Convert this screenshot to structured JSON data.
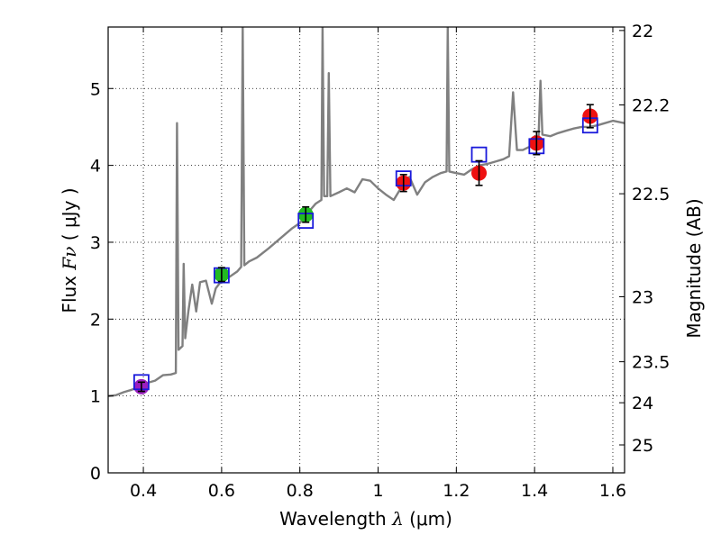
{
  "chart_data": {
    "type": "scatter",
    "xlabel_prefix": "Wavelength",
    "xlabel_symbol": "λ",
    "xlabel_unit": "(μm)",
    "ylabel_prefix": "Flux",
    "ylabel_symbol": "Fν",
    "ylabel_unit": "( μJy )",
    "y2label": "Magnitude (AB)",
    "xlim": [
      0.31,
      1.63
    ],
    "ylim": [
      0,
      5.8
    ],
    "grid": true,
    "x_ticks": [
      {
        "value": 0.4,
        "label": "0.4"
      },
      {
        "value": 0.6,
        "label": "0.6"
      },
      {
        "value": 0.8,
        "label": "0.8"
      },
      {
        "value": 1.0,
        "label": "1"
      },
      {
        "value": 1.2,
        "label": "1.2"
      },
      {
        "value": 1.4,
        "label": "1.4"
      },
      {
        "value": 1.6,
        "label": "1.6"
      }
    ],
    "y_ticks": [
      {
        "value": 0,
        "label": "0"
      },
      {
        "value": 1,
        "label": "1"
      },
      {
        "value": 2,
        "label": "2"
      },
      {
        "value": 3,
        "label": "3"
      },
      {
        "value": 4,
        "label": "4"
      },
      {
        "value": 5,
        "label": "5"
      }
    ],
    "y2_ticks": [
      {
        "value": 22,
        "label": "22"
      },
      {
        "value": 22.2,
        "label": "22.2"
      },
      {
        "value": 22.5,
        "label": "22.5"
      },
      {
        "value": 23,
        "label": "23"
      },
      {
        "value": 23.5,
        "label": "23.5"
      },
      {
        "value": 24,
        "label": "24"
      },
      {
        "value": 25,
        "label": "25"
      }
    ],
    "observed": [
      {
        "x": 0.395,
        "y": 1.12,
        "err": 0.06,
        "color": "#9b1fbf"
      },
      {
        "x": 0.6,
        "y": 2.58,
        "err": 0.09,
        "color": "#22bb22"
      },
      {
        "x": 0.815,
        "y": 3.36,
        "err": 0.1,
        "color": "#22bb22"
      },
      {
        "x": 1.065,
        "y": 3.77,
        "err": 0.11,
        "color": "#ee1111"
      },
      {
        "x": 1.258,
        "y": 3.9,
        "err": 0.16,
        "color": "#ee1111"
      },
      {
        "x": 1.405,
        "y": 4.29,
        "err": 0.15,
        "color": "#ee1111"
      },
      {
        "x": 1.542,
        "y": 4.64,
        "err": 0.15,
        "color": "#ee1111"
      }
    ],
    "model_points": [
      {
        "x": 0.395,
        "y": 1.18
      },
      {
        "x": 0.6,
        "y": 2.57
      },
      {
        "x": 0.815,
        "y": 3.28
      },
      {
        "x": 1.065,
        "y": 3.83
      },
      {
        "x": 1.258,
        "y": 4.14
      },
      {
        "x": 1.405,
        "y": 4.25
      },
      {
        "x": 1.542,
        "y": 4.52
      }
    ],
    "spectrum": [
      [
        0.31,
        1.0
      ],
      [
        0.33,
        1.01
      ],
      [
        0.35,
        1.05
      ],
      [
        0.37,
        1.08
      ],
      [
        0.39,
        1.12
      ],
      [
        0.41,
        1.17
      ],
      [
        0.43,
        1.2
      ],
      [
        0.45,
        1.27
      ],
      [
        0.47,
        1.28
      ],
      [
        0.483,
        1.3
      ],
      [
        0.486,
        4.55
      ],
      [
        0.49,
        1.6
      ],
      [
        0.5,
        1.65
      ],
      [
        0.503,
        2.72
      ],
      [
        0.507,
        1.75
      ],
      [
        0.515,
        2.1
      ],
      [
        0.525,
        2.45
      ],
      [
        0.535,
        2.1
      ],
      [
        0.545,
        2.48
      ],
      [
        0.56,
        2.5
      ],
      [
        0.575,
        2.2
      ],
      [
        0.585,
        2.4
      ],
      [
        0.6,
        2.5
      ],
      [
        0.62,
        2.55
      ],
      [
        0.64,
        2.62
      ],
      [
        0.65,
        2.68
      ],
      [
        0.654,
        5.8
      ],
      [
        0.658,
        2.7
      ],
      [
        0.67,
        2.75
      ],
      [
        0.69,
        2.8
      ],
      [
        0.72,
        2.92
      ],
      [
        0.75,
        3.05
      ],
      [
        0.78,
        3.18
      ],
      [
        0.8,
        3.25
      ],
      [
        0.82,
        3.38
      ],
      [
        0.84,
        3.5
      ],
      [
        0.855,
        3.55
      ],
      [
        0.858,
        5.8
      ],
      [
        0.862,
        3.6
      ],
      [
        0.87,
        3.6
      ],
      [
        0.874,
        5.2
      ],
      [
        0.878,
        3.6
      ],
      [
        0.9,
        3.65
      ],
      [
        0.92,
        3.7
      ],
      [
        0.94,
        3.65
      ],
      [
        0.96,
        3.82
      ],
      [
        0.98,
        3.8
      ],
      [
        1.0,
        3.7
      ],
      [
        1.02,
        3.62
      ],
      [
        1.04,
        3.55
      ],
      [
        1.06,
        3.72
      ],
      [
        1.08,
        3.85
      ],
      [
        1.1,
        3.62
      ],
      [
        1.12,
        3.78
      ],
      [
        1.14,
        3.85
      ],
      [
        1.16,
        3.9
      ],
      [
        1.175,
        3.92
      ],
      [
        1.178,
        5.8
      ],
      [
        1.182,
        3.92
      ],
      [
        1.2,
        3.9
      ],
      [
        1.22,
        3.88
      ],
      [
        1.24,
        3.95
      ],
      [
        1.26,
        4.0
      ],
      [
        1.28,
        4.02
      ],
      [
        1.3,
        4.05
      ],
      [
        1.32,
        4.08
      ],
      [
        1.335,
        4.12
      ],
      [
        1.345,
        4.95
      ],
      [
        1.355,
        4.2
      ],
      [
        1.37,
        4.2
      ],
      [
        1.39,
        4.25
      ],
      [
        1.41,
        4.35
      ],
      [
        1.415,
        5.1
      ],
      [
        1.42,
        4.4
      ],
      [
        1.44,
        4.38
      ],
      [
        1.46,
        4.42
      ],
      [
        1.48,
        4.45
      ],
      [
        1.5,
        4.48
      ],
      [
        1.52,
        4.5
      ],
      [
        1.54,
        4.5
      ],
      [
        1.56,
        4.52
      ],
      [
        1.58,
        4.55
      ],
      [
        1.6,
        4.58
      ],
      [
        1.63,
        4.55
      ]
    ]
  }
}
